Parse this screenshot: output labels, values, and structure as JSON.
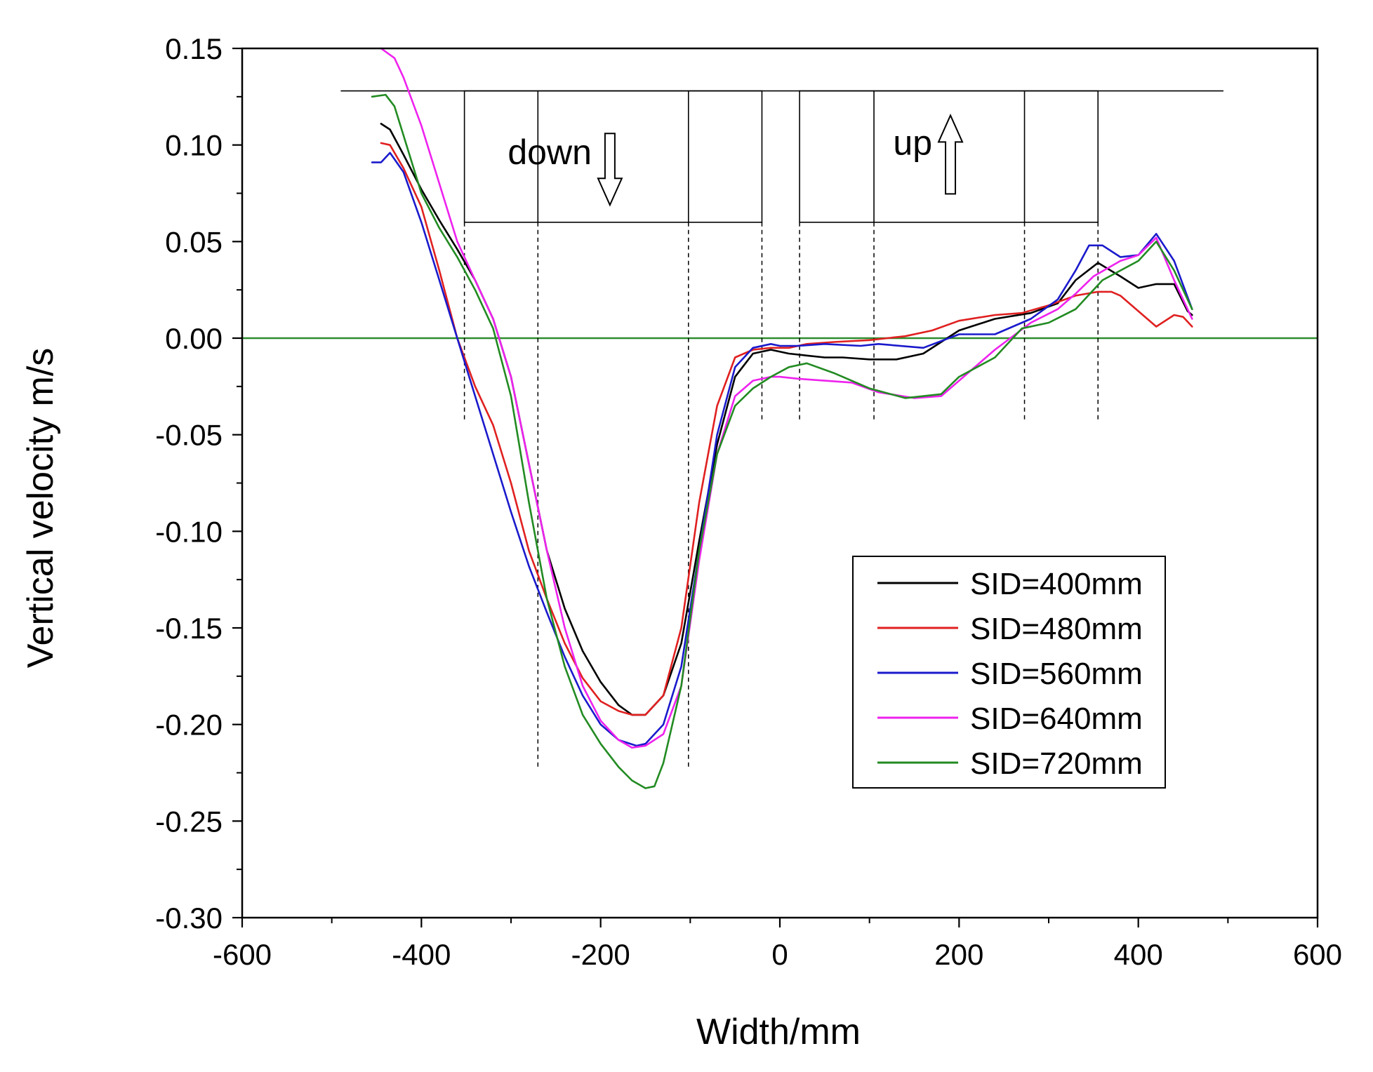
{
  "chart_data": {
    "type": "line",
    "title": "",
    "xlabel": "Width/mm",
    "ylabel": "Vertical velocity m/s",
    "xlim": [
      -600,
      600
    ],
    "ylim": [
      -0.3,
      0.15
    ],
    "xticks": [
      -600,
      -400,
      -200,
      0,
      200,
      400,
      600
    ],
    "xtick_labels": [
      "-600",
      "-400",
      "-200",
      "0",
      "200",
      "400",
      "600"
    ],
    "yticks": [
      0.15,
      0.1,
      0.05,
      0.0,
      -0.05,
      -0.1,
      -0.15,
      -0.2,
      -0.25,
      -0.3
    ],
    "ytick_labels": [
      "0.15",
      "0.10",
      "0.05",
      "0.00",
      "-0.05",
      "-0.10",
      "-0.15",
      "-0.20",
      "-0.25",
      "-0.30"
    ],
    "grid": false,
    "legend_position": "lower-right",
    "reference_line": {
      "y": 0.0,
      "color": "#2e8b2e"
    },
    "colors": {
      "SID=400mm": "#000000",
      "SID=480mm": "#e02020",
      "SID=560mm": "#1a1acc",
      "SID=640mm": "#ee22ee",
      "SID=720mm": "#228b22"
    },
    "series": [
      {
        "name": "SID=400mm",
        "x": [
          -445,
          -435,
          -420,
          -400,
          -380,
          -360,
          -340,
          -320,
          -300,
          -280,
          -260,
          -240,
          -220,
          -200,
          -180,
          -165,
          -150,
          -130,
          -110,
          -90,
          -70,
          -50,
          -30,
          -10,
          10,
          30,
          50,
          70,
          100,
          130,
          160,
          200,
          240,
          280,
          310,
          330,
          355,
          380,
          400,
          420,
          440,
          455,
          460
        ],
        "y": [
          0.111,
          0.108,
          0.095,
          0.077,
          0.061,
          0.046,
          0.03,
          0.01,
          -0.02,
          -0.065,
          -0.11,
          -0.14,
          -0.162,
          -0.178,
          -0.19,
          -0.195,
          -0.195,
          -0.185,
          -0.158,
          -0.105,
          -0.055,
          -0.02,
          -0.008,
          -0.006,
          -0.008,
          -0.009,
          -0.01,
          -0.01,
          -0.011,
          -0.011,
          -0.008,
          0.004,
          0.01,
          0.013,
          0.018,
          0.03,
          0.039,
          0.032,
          0.026,
          0.028,
          0.028,
          0.014,
          0.012
        ]
      },
      {
        "name": "SID=480mm",
        "x": [
          -445,
          -435,
          -420,
          -400,
          -380,
          -360,
          -340,
          -320,
          -300,
          -280,
          -260,
          -240,
          -220,
          -200,
          -180,
          -165,
          -150,
          -130,
          -110,
          -90,
          -70,
          -50,
          -30,
          -10,
          10,
          30,
          60,
          100,
          140,
          170,
          200,
          240,
          270,
          300,
          330,
          355,
          370,
          380,
          400,
          420,
          440,
          450,
          460
        ],
        "y": [
          0.101,
          0.1,
          0.088,
          0.068,
          0.035,
          0.0,
          -0.025,
          -0.045,
          -0.075,
          -0.11,
          -0.135,
          -0.158,
          -0.176,
          -0.188,
          -0.193,
          -0.195,
          -0.195,
          -0.185,
          -0.15,
          -0.085,
          -0.035,
          -0.01,
          -0.006,
          -0.005,
          -0.005,
          -0.003,
          -0.002,
          -0.001,
          0.001,
          0.004,
          0.009,
          0.012,
          0.013,
          0.017,
          0.022,
          0.024,
          0.024,
          0.022,
          0.014,
          0.006,
          0.012,
          0.011,
          0.006
        ]
      },
      {
        "name": "SID=560mm",
        "x": [
          -455,
          -445,
          -435,
          -420,
          -400,
          -380,
          -360,
          -340,
          -320,
          -300,
          -280,
          -260,
          -240,
          -220,
          -200,
          -180,
          -160,
          -150,
          -130,
          -110,
          -90,
          -70,
          -50,
          -30,
          -10,
          0,
          20,
          50,
          90,
          110,
          160,
          200,
          240,
          280,
          310,
          330,
          345,
          360,
          380,
          400,
          420,
          440,
          460
        ],
        "y": [
          0.091,
          0.091,
          0.096,
          0.086,
          0.06,
          0.03,
          0.0,
          -0.03,
          -0.06,
          -0.09,
          -0.118,
          -0.142,
          -0.165,
          -0.185,
          -0.2,
          -0.208,
          -0.211,
          -0.21,
          -0.2,
          -0.17,
          -0.11,
          -0.05,
          -0.015,
          -0.005,
          -0.003,
          -0.004,
          -0.004,
          -0.003,
          -0.004,
          -0.003,
          -0.005,
          0.002,
          0.002,
          0.01,
          0.02,
          0.035,
          0.048,
          0.048,
          0.042,
          0.043,
          0.054,
          0.04,
          0.015
        ]
      },
      {
        "name": "SID=640mm",
        "x": [
          -445,
          -430,
          -420,
          -400,
          -380,
          -360,
          -340,
          -320,
          -300,
          -280,
          -260,
          -240,
          -220,
          -200,
          -180,
          -165,
          -150,
          -130,
          -110,
          -90,
          -70,
          -50,
          -30,
          -10,
          0,
          20,
          50,
          80,
          110,
          150,
          180,
          200,
          240,
          280,
          310,
          330,
          350,
          380,
          400,
          420,
          440,
          460
        ],
        "y": [
          0.15,
          0.145,
          0.135,
          0.11,
          0.08,
          0.05,
          0.03,
          0.01,
          -0.02,
          -0.065,
          -0.11,
          -0.15,
          -0.18,
          -0.198,
          -0.208,
          -0.212,
          -0.211,
          -0.205,
          -0.18,
          -0.115,
          -0.06,
          -0.03,
          -0.022,
          -0.02,
          -0.02,
          -0.021,
          -0.022,
          -0.023,
          -0.028,
          -0.031,
          -0.03,
          -0.022,
          -0.006,
          0.008,
          0.015,
          0.023,
          0.032,
          0.04,
          0.043,
          0.052,
          0.03,
          0.01
        ]
      },
      {
        "name": "SID=720mm",
        "x": [
          -455,
          -440,
          -430,
          -420,
          -400,
          -380,
          -360,
          -340,
          -320,
          -300,
          -280,
          -260,
          -240,
          -220,
          -200,
          -180,
          -165,
          -150,
          -140,
          -130,
          -110,
          -90,
          -70,
          -50,
          -30,
          -10,
          10,
          30,
          60,
          100,
          140,
          180,
          200,
          240,
          270,
          300,
          330,
          360,
          380,
          400,
          420,
          440,
          460
        ],
        "y": [
          0.125,
          0.126,
          0.12,
          0.105,
          0.075,
          0.057,
          0.042,
          0.025,
          0.005,
          -0.03,
          -0.085,
          -0.135,
          -0.17,
          -0.195,
          -0.21,
          -0.222,
          -0.229,
          -0.233,
          -0.232,
          -0.22,
          -0.18,
          -0.11,
          -0.06,
          -0.035,
          -0.026,
          -0.02,
          -0.015,
          -0.013,
          -0.018,
          -0.026,
          -0.031,
          -0.029,
          -0.02,
          -0.01,
          0.005,
          0.008,
          0.015,
          0.03,
          0.035,
          0.04,
          0.05,
          0.035,
          0.015
        ]
      }
    ],
    "annotations": [
      {
        "text": "down",
        "arrow": "down",
        "x": -210,
        "y": 0.09
      },
      {
        "text": "up",
        "arrow": "up",
        "x": 170,
        "y": 0.095
      }
    ],
    "zone_diagram": {
      "top_line": {
        "x": [
          -490,
          495
        ],
        "y": 0.128
      },
      "box_down": {
        "x": [
          -352,
          -20
        ],
        "y": [
          0.06,
          0.128
        ],
        "inner_lines_x": [
          -270,
          -102
        ]
      },
      "box_up": {
        "x": [
          22,
          355
        ],
        "y": [
          0.06,
          0.128
        ],
        "inner_lines_x": [
          105,
          273
        ]
      },
      "dashed_lines": [
        {
          "x": -352,
          "y": [
            -0.043,
            0.06
          ]
        },
        {
          "x": -270,
          "y": [
            -0.222,
            0.06
          ]
        },
        {
          "x": -102,
          "y": [
            -0.222,
            0.06
          ]
        },
        {
          "x": -20,
          "y": [
            -0.043,
            0.06
          ]
        },
        {
          "x": 22,
          "y": [
            -0.043,
            0.06
          ]
        },
        {
          "x": 105,
          "y": [
            -0.043,
            0.06
          ]
        },
        {
          "x": 273,
          "y": [
            -0.043,
            0.06
          ]
        },
        {
          "x": 355,
          "y": [
            -0.043,
            0.06
          ]
        }
      ]
    }
  }
}
